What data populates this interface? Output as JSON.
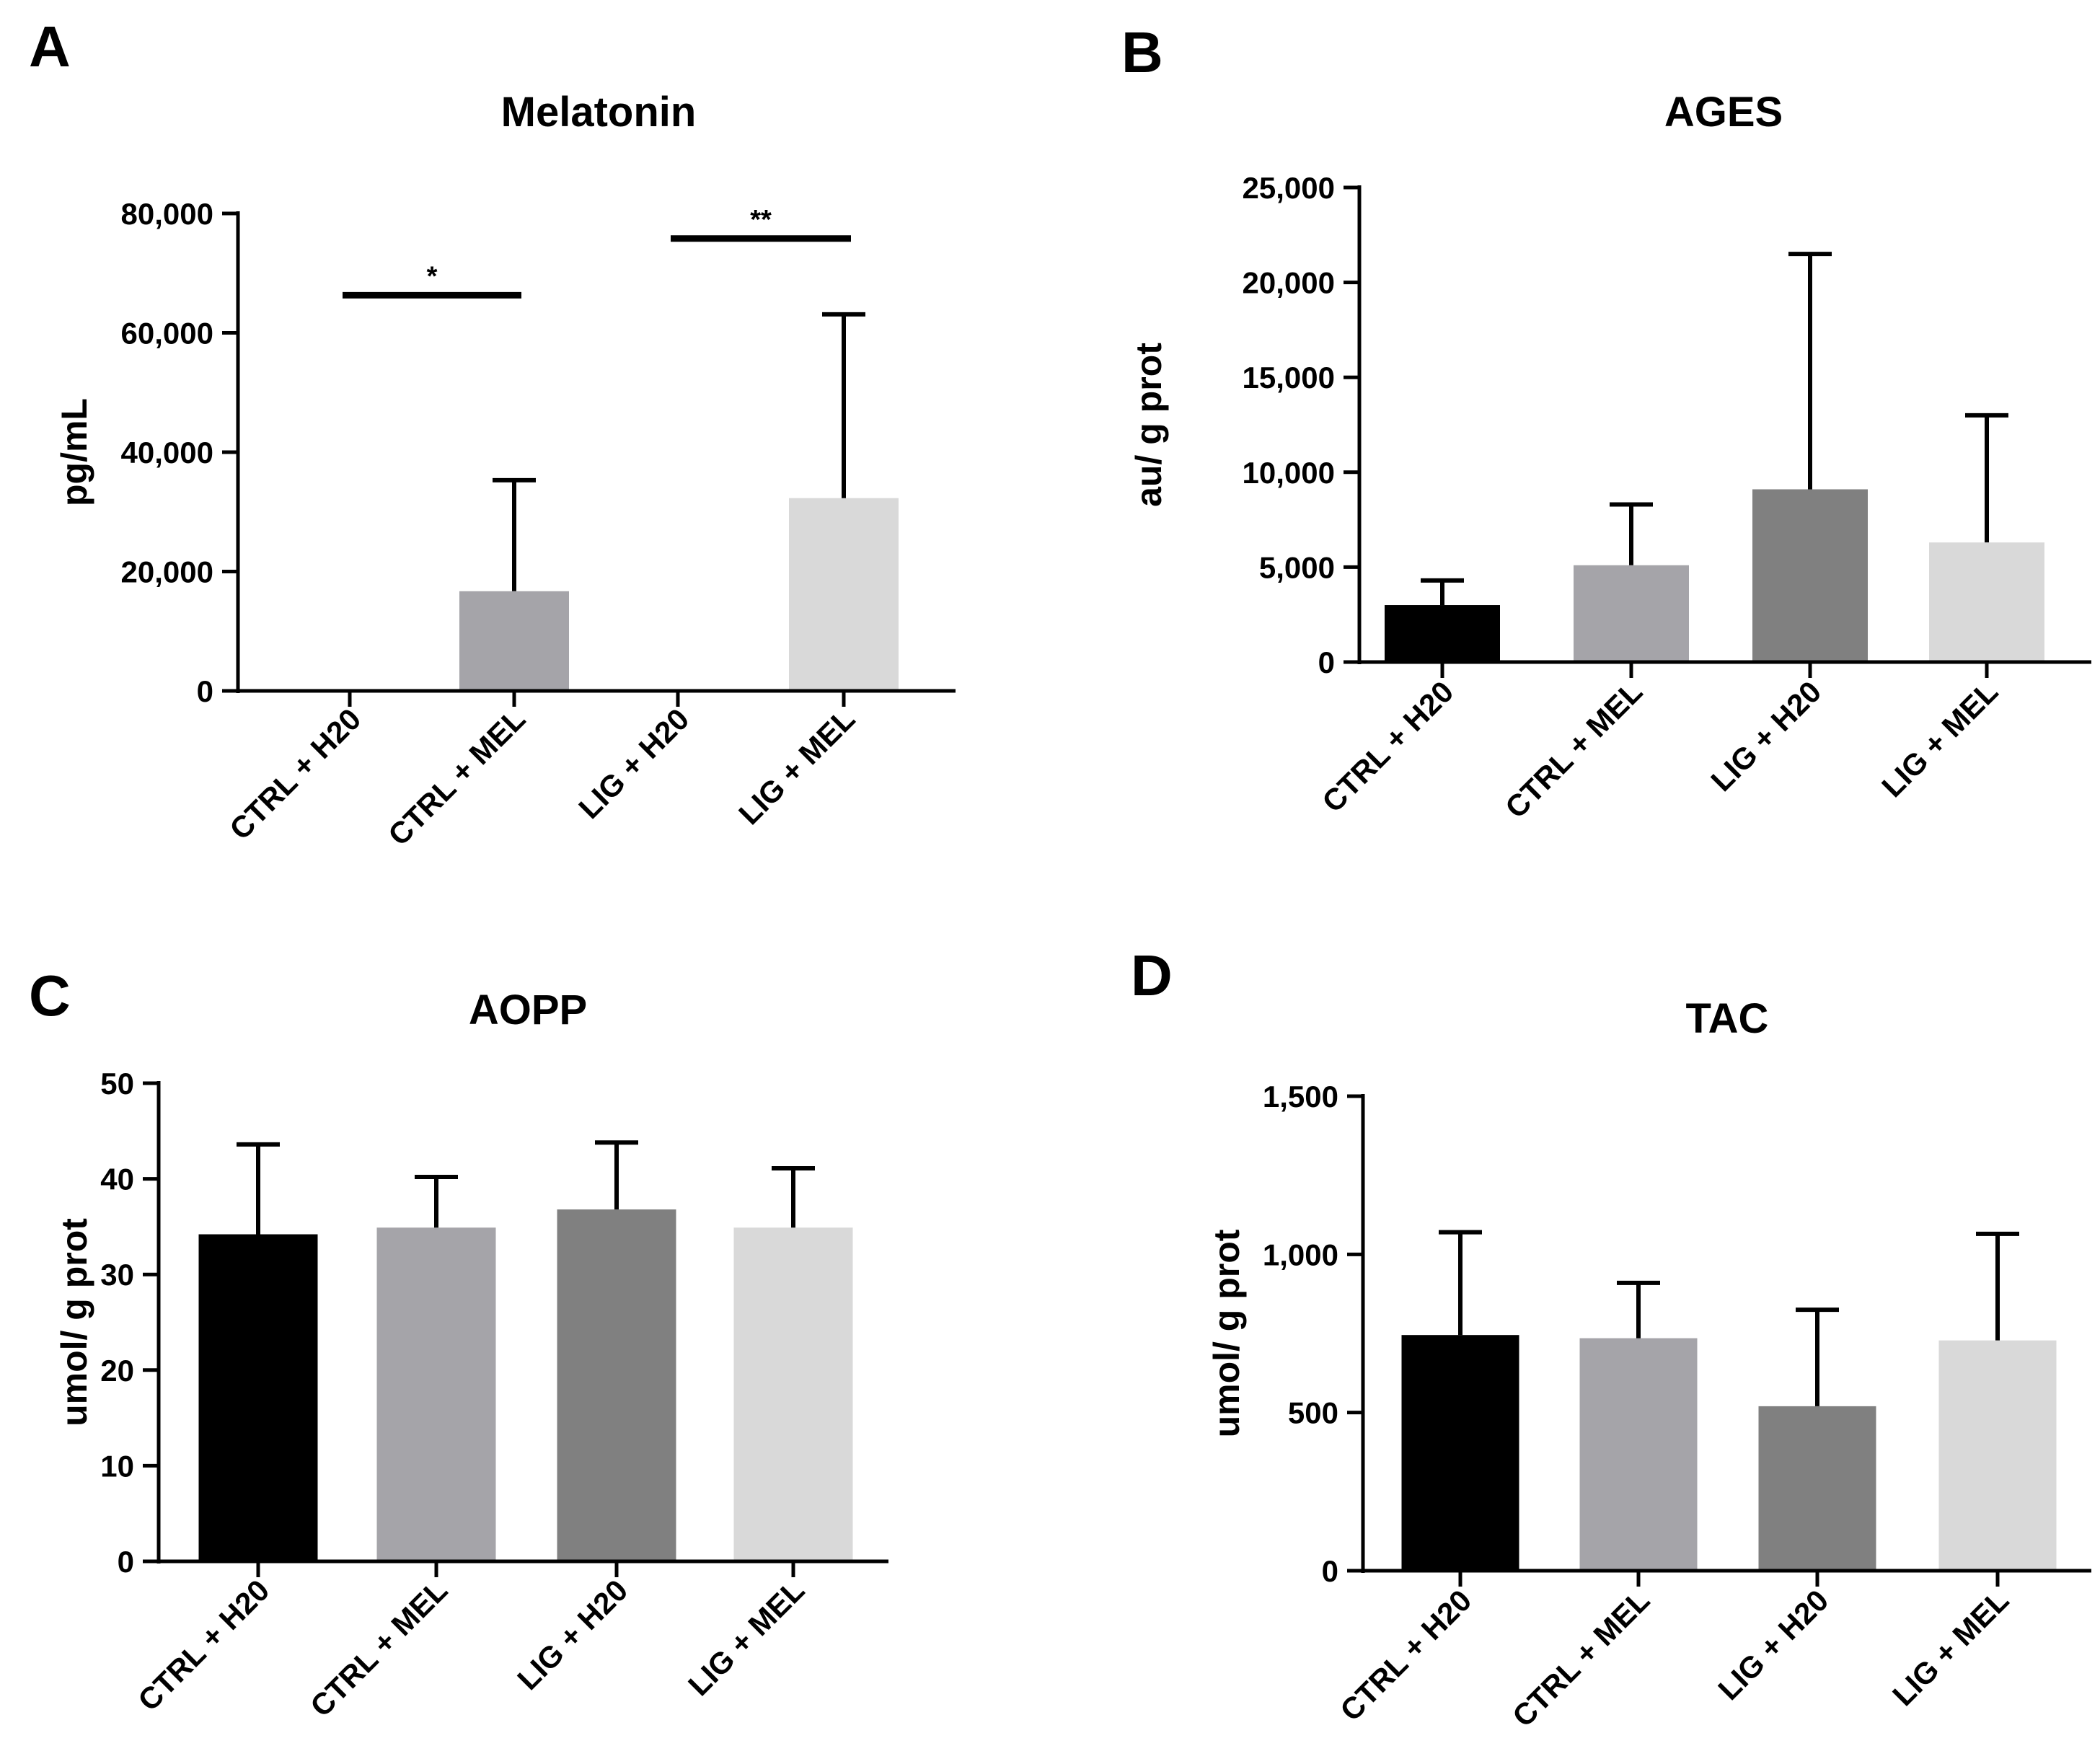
{
  "chart_data": [
    {
      "panel": "A",
      "type": "bar",
      "title": "Melatonin",
      "xlabel": "",
      "ylabel": "pg/mL",
      "ylim": [
        0,
        80000
      ],
      "yticks": [
        "0",
        "20,000",
        "40,000",
        "60,000",
        "80,000"
      ],
      "categories": [
        "CTRL + H20",
        "CTRL + MEL",
        "LIG + H20",
        "LIG + MEL"
      ],
      "values": [
        0,
        16700,
        0,
        32300
      ],
      "error_upper": [
        0,
        35300,
        0,
        63100
      ],
      "bar_colors": [
        "#000000",
        "#a5a4a9",
        "#808080",
        "#d9d9d9"
      ],
      "significance": [
        {
          "from": 0,
          "to": 1,
          "label": "*",
          "y": 66300
        },
        {
          "from": 2,
          "to": 3,
          "label": "**",
          "y": 75800
        }
      ]
    },
    {
      "panel": "B",
      "type": "bar",
      "title": "AGES",
      "xlabel": "",
      "ylabel": "au/ g prot",
      "ylim": [
        0,
        25000
      ],
      "yticks": [
        "0",
        "5,000",
        "10,000",
        "15,000",
        "20,000",
        "25,000"
      ],
      "categories": [
        "CTRL + H20",
        "CTRL + MEL",
        "LIG + H20",
        "LIG + MEL"
      ],
      "values": [
        3000,
        5100,
        9100,
        6300
      ],
      "error_upper": [
        4300,
        8300,
        21500,
        13000
      ],
      "bar_colors": [
        "#000000",
        "#a5a4a9",
        "#808080",
        "#d9d9d9"
      ],
      "significance": []
    },
    {
      "panel": "C",
      "type": "bar",
      "title": "AOPP",
      "xlabel": "",
      "ylabel": "umol/ g prot",
      "ylim": [
        0,
        50
      ],
      "yticks": [
        "0",
        "10",
        "20",
        "30",
        "40",
        "50"
      ],
      "categories": [
        "CTRL + H20",
        "CTRL + MEL",
        "LIG + H20",
        "LIG + MEL"
      ],
      "values": [
        34.2,
        34.9,
        36.8,
        34.9
      ],
      "error_upper": [
        43.6,
        40.2,
        43.8,
        41.1
      ],
      "bar_colors": [
        "#000000",
        "#a5a4a9",
        "#808080",
        "#d9d9d9"
      ],
      "significance": []
    },
    {
      "panel": "D",
      "type": "bar",
      "title": "TAC",
      "xlabel": "",
      "ylabel": "umol/ g prot",
      "ylim": [
        0,
        1500
      ],
      "yticks": [
        "0",
        "500",
        "1,000",
        "1,500"
      ],
      "categories": [
        "CTRL + H20",
        "CTRL + MEL",
        "LIG + H20",
        "LIG + MEL"
      ],
      "values": [
        745,
        735,
        520,
        728
      ],
      "error_upper": [
        1070,
        910,
        825,
        1065
      ],
      "bar_colors": [
        "#000000",
        "#a5a4a9",
        "#808080",
        "#d9d9d9"
      ],
      "significance": []
    }
  ]
}
